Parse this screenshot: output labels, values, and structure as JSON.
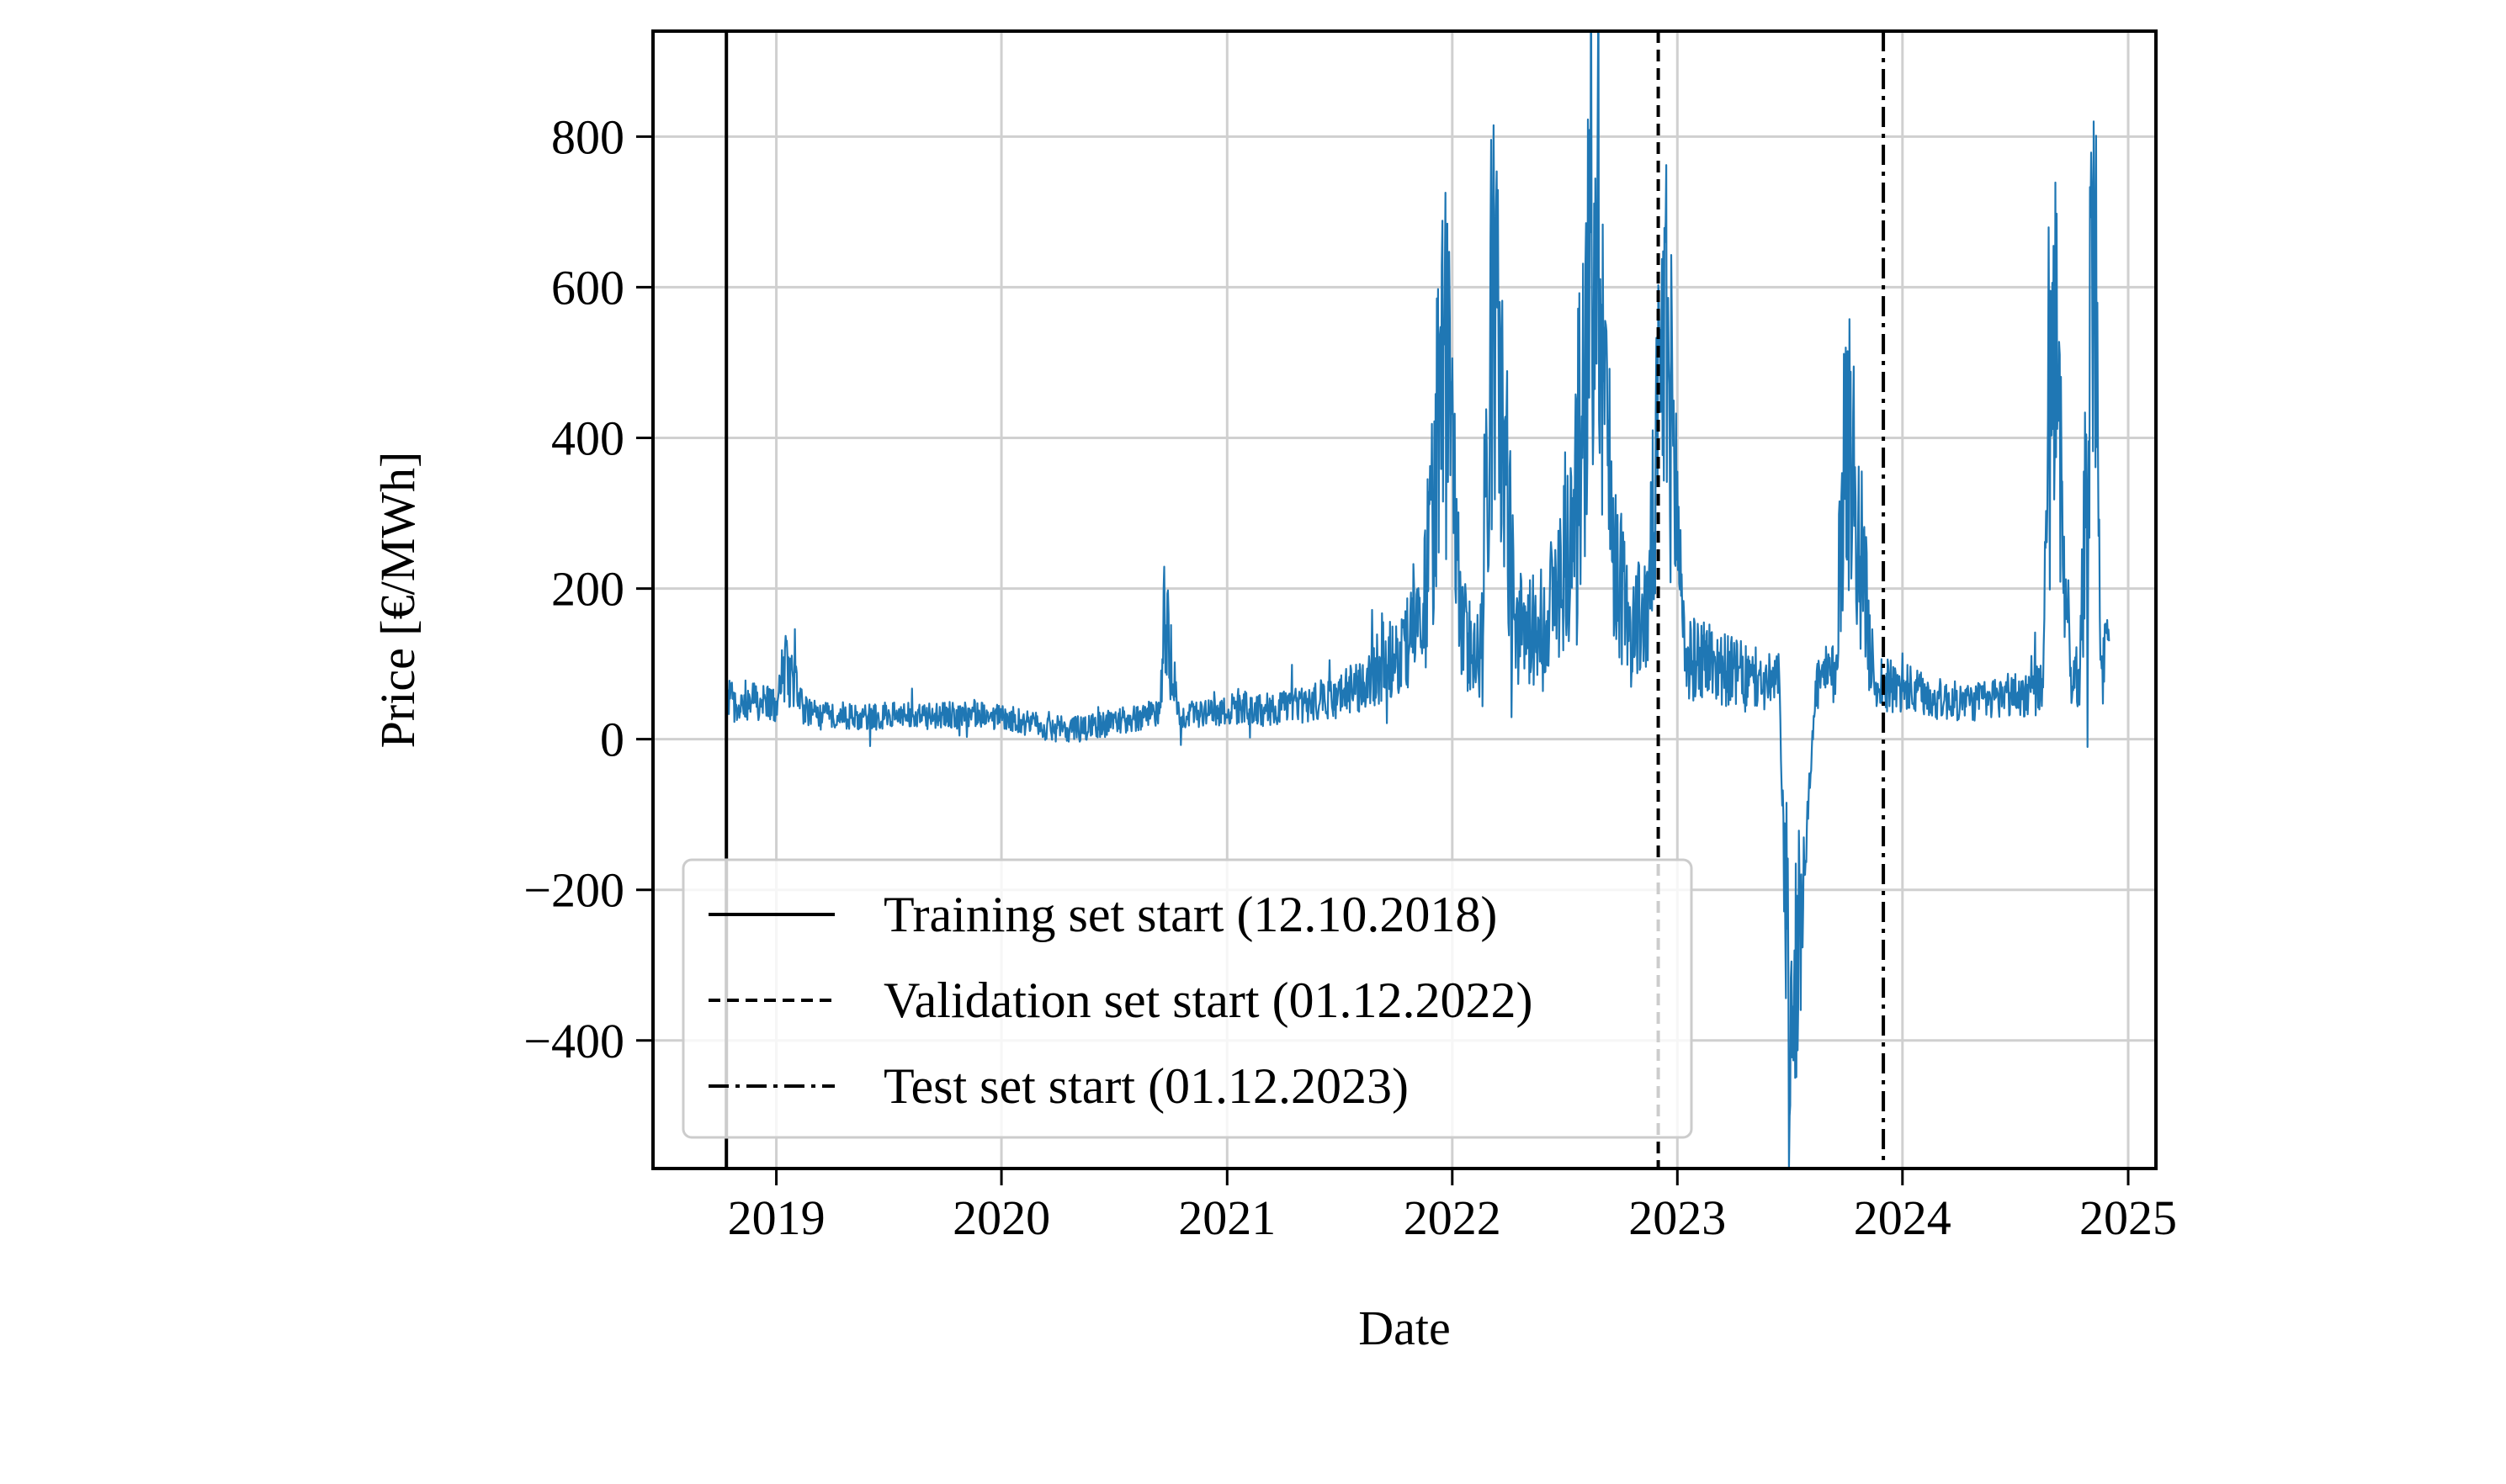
{
  "chart_data": {
    "type": "line",
    "title": "",
    "xlabel": "Date",
    "ylabel": "Price [€/MWh]",
    "x_axis_type": "date",
    "xlim": [
      "2018-06-15",
      "2025-02-15"
    ],
    "ylim": [
      -570,
      940
    ],
    "x_ticks": [
      {
        "value": "2019-01-01",
        "label": "2019"
      },
      {
        "value": "2020-01-01",
        "label": "2020"
      },
      {
        "value": "2021-01-01",
        "label": "2021"
      },
      {
        "value": "2022-01-01",
        "label": "2022"
      },
      {
        "value": "2023-01-01",
        "label": "2023"
      },
      {
        "value": "2024-01-01",
        "label": "2024"
      },
      {
        "value": "2025-01-01",
        "label": "2025"
      }
    ],
    "y_ticks": [
      {
        "value": -400,
        "label": "−400"
      },
      {
        "value": -200,
        "label": "−200"
      },
      {
        "value": 0,
        "label": "0"
      },
      {
        "value": 200,
        "label": "200"
      },
      {
        "value": 400,
        "label": "400"
      },
      {
        "value": 600,
        "label": "600"
      },
      {
        "value": 800,
        "label": "800"
      }
    ],
    "grid": true,
    "legend_position": "lower-left",
    "series": [
      {
        "color": "#1f77b4",
        "points": [
          [
            "2018-10-12",
            70
          ],
          [
            "2018-11-01",
            45
          ],
          [
            "2018-12-01",
            62
          ],
          [
            "2019-01-01",
            50
          ],
          [
            "2019-01-15",
            120
          ],
          [
            "2019-02-15",
            45
          ],
          [
            "2019-03-15",
            35
          ],
          [
            "2019-04-15",
            40
          ],
          [
            "2019-05-15",
            32
          ],
          [
            "2019-06-15",
            35
          ],
          [
            "2019-07-15",
            38
          ],
          [
            "2019-08-15",
            36
          ],
          [
            "2019-09-15",
            34
          ],
          [
            "2019-10-15",
            38
          ],
          [
            "2019-11-15",
            42
          ],
          [
            "2019-12-15",
            35
          ],
          [
            "2020-01-15",
            34
          ],
          [
            "2020-02-15",
            22
          ],
          [
            "2020-03-15",
            18
          ],
          [
            "2020-04-15",
            15
          ],
          [
            "2020-05-15",
            16
          ],
          [
            "2020-06-15",
            24
          ],
          [
            "2020-07-15",
            30
          ],
          [
            "2020-08-15",
            35
          ],
          [
            "2020-09-15",
            42
          ],
          [
            "2020-09-20",
            200
          ],
          [
            "2020-10-15",
            38
          ],
          [
            "2020-11-15",
            38
          ],
          [
            "2020-12-15",
            42
          ],
          [
            "2021-01-15",
            50
          ],
          [
            "2021-02-15",
            48
          ],
          [
            "2021-03-15",
            45
          ],
          [
            "2021-04-15",
            52
          ],
          [
            "2021-05-15",
            55
          ],
          [
            "2021-06-15",
            65
          ],
          [
            "2021-07-15",
            75
          ],
          [
            "2021-08-15",
            80
          ],
          [
            "2021-09-15",
            130
          ],
          [
            "2021-10-15",
            140
          ],
          [
            "2021-11-15",
            180
          ],
          [
            "2021-12-20",
            620
          ],
          [
            "2022-01-15",
            170
          ],
          [
            "2022-02-15",
            130
          ],
          [
            "2022-03-08",
            700
          ],
          [
            "2022-04-15",
            170
          ],
          [
            "2022-05-15",
            170
          ],
          [
            "2022-06-15",
            220
          ],
          [
            "2022-07-15",
            320
          ],
          [
            "2022-08-25",
            870
          ],
          [
            "2022-09-15",
            340
          ],
          [
            "2022-10-15",
            170
          ],
          [
            "2022-11-15",
            200
          ],
          [
            "2022-12-12",
            660
          ],
          [
            "2023-01-15",
            120
          ],
          [
            "2023-02-15",
            130
          ],
          [
            "2023-03-15",
            110
          ],
          [
            "2023-04-15",
            100
          ],
          [
            "2023-05-15",
            85
          ],
          [
            "2023-06-15",
            90
          ],
          [
            "2023-07-02",
            -500
          ],
          [
            "2023-08-15",
            90
          ],
          [
            "2023-09-15",
            100
          ],
          [
            "2023-10-01",
            520
          ],
          [
            "2023-11-15",
            95
          ],
          [
            "2023-12-15",
            80
          ],
          [
            "2024-01-15",
            75
          ],
          [
            "2024-02-15",
            65
          ],
          [
            "2024-03-15",
            60
          ],
          [
            "2024-04-15",
            58
          ],
          [
            "2024-05-15",
            60
          ],
          [
            "2024-06-15",
            70
          ],
          [
            "2024-07-15",
            70
          ],
          [
            "2024-08-15",
            80
          ],
          [
            "2024-09-02",
            655
          ],
          [
            "2024-09-30",
            95
          ],
          [
            "2024-10-15",
            100
          ],
          [
            "2024-11-06",
            820
          ],
          [
            "2024-11-20",
            110
          ],
          [
            "2024-12-01",
            130
          ]
        ]
      }
    ],
    "reference_lines": [
      {
        "date": "2018-10-12",
        "style": "solid",
        "label": "Training set start (12.10.2018)"
      },
      {
        "date": "2022-12-01",
        "style": "dashed",
        "label": "Validation set start (01.12.2022)"
      },
      {
        "date": "2023-12-01",
        "style": "dashdot",
        "label": "Test set start (01.12.2023)"
      }
    ]
  }
}
